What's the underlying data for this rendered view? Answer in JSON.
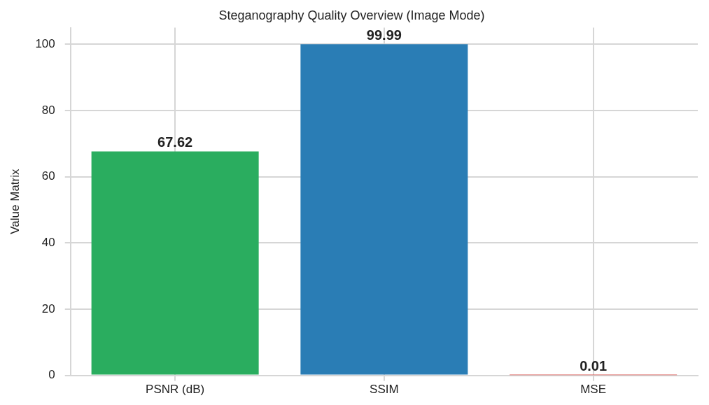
{
  "chart_data": {
    "type": "bar",
    "title": "Steganography Quality Overview (Image Mode)",
    "ylabel": "Value Matrix",
    "categories": [
      "PSNR (dB)",
      "SSIM",
      "MSE"
    ],
    "values": [
      67.62,
      99.99,
      0.01
    ],
    "colors": [
      "#2aad5f",
      "#2a7db5",
      "#d9534f"
    ],
    "ylim": [
      0,
      105
    ],
    "yticks": [
      0,
      20,
      40,
      60,
      80,
      100
    ],
    "grid": true,
    "data_labels": true,
    "legend": false
  }
}
